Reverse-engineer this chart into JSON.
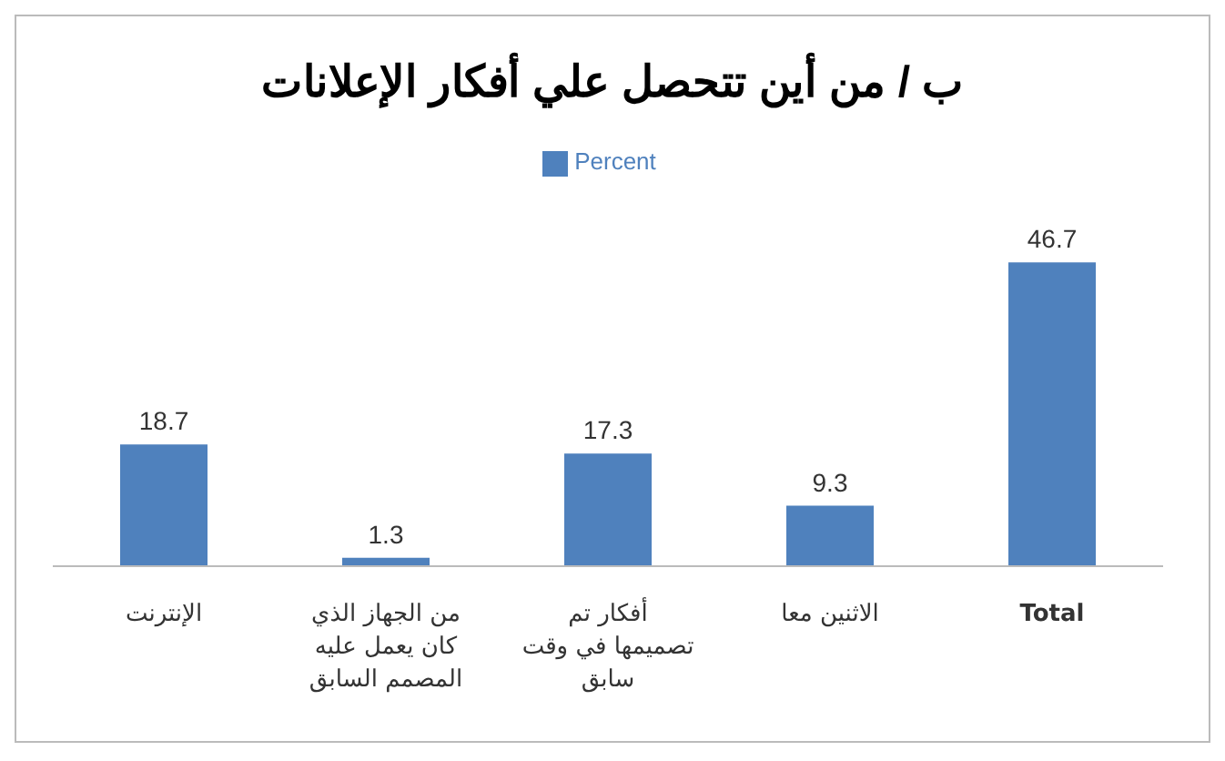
{
  "chart_data": {
    "type": "bar",
    "title": "ب / من أين تتحصل علي أفكار الإعلانات",
    "categories": [
      "الإنترنت",
      "من الجهاز الذي كان يعمل عليه المصمم السابق",
      "أفكار تم تصميمها في وقت سابق",
      "الاثنين معا",
      "Total"
    ],
    "series": [
      {
        "name": "Percent",
        "color": "#4f81bd",
        "values": [
          18.7,
          1.3,
          17.3,
          9.3,
          46.7
        ]
      }
    ],
    "data_labels": true,
    "legend": "top",
    "grid": false,
    "tick_labels": "x"
  }
}
